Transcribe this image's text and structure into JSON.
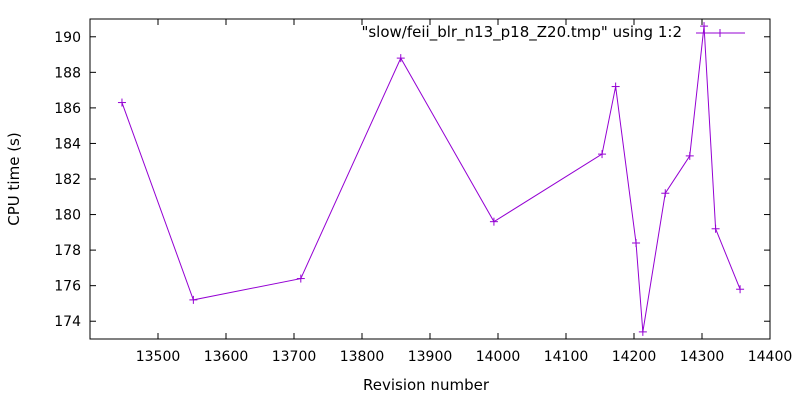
{
  "chart_data": {
    "type": "line",
    "title": "",
    "xlabel": "Revision number",
    "ylabel": "CPU time (s)",
    "xlim": [
      13400,
      14400
    ],
    "ylim": [
      173,
      191
    ],
    "x_ticks": [
      13500,
      13600,
      13700,
      13800,
      13900,
      14000,
      14100,
      14200,
      14300,
      14400
    ],
    "y_ticks": [
      174,
      176,
      178,
      180,
      182,
      184,
      186,
      188,
      190
    ],
    "grid": false,
    "legend_position": "top-right",
    "series": [
      {
        "name": "\"slow/feii_blr_n13_p18_Z20.tmp\" using 1:2",
        "color": "#9400d3",
        "marker": "plus",
        "x": [
          13447,
          13552,
          13710,
          13857,
          13994,
          14153,
          14173,
          14203,
          14213,
          14246,
          14282,
          14303,
          14320,
          14356
        ],
        "y": [
          186.3,
          175.2,
          176.4,
          188.8,
          179.6,
          183.4,
          187.2,
          178.4,
          173.4,
          181.2,
          183.3,
          190.6,
          179.2,
          175.8
        ]
      }
    ]
  }
}
